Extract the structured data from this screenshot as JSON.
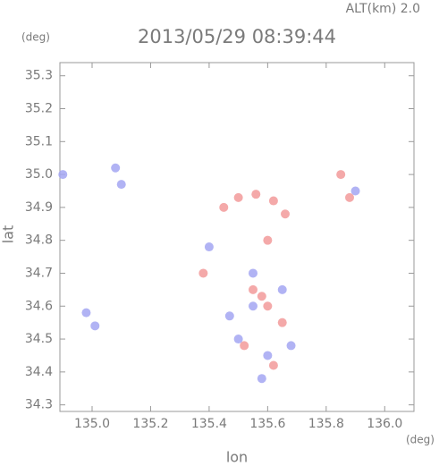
{
  "chart_data": {
    "type": "scatter",
    "title": "2013/05/29 08:39:44",
    "subtitle": "ALT(km) 2.0",
    "y_unit": "(deg)",
    "x_unit": "(deg)",
    "ylabel": "lat",
    "xlabel": "lon",
    "xlim": [
      134.89,
      136.1
    ],
    "ylim": [
      34.28,
      35.34
    ],
    "xticks": [
      {
        "value": 135,
        "label": "135.0"
      },
      135.2,
      135.4,
      135.6,
      135.8,
      {
        "value": 136,
        "label": "136.0"
      }
    ],
    "yticks": [
      34.3,
      34.4,
      34.5,
      34.6,
      34.7,
      34.8,
      34.9,
      {
        "value": 35,
        "label": "35.0"
      },
      35.1,
      35.2,
      35.3
    ],
    "grid": false,
    "series": [
      {
        "color": "#f29a9a",
        "x": [
          135.45,
          135.5,
          135.56,
          135.62,
          135.66,
          135.85,
          135.88,
          135.6,
          135.62,
          135.55,
          135.65,
          135.38,
          135.6,
          135.52,
          135.58
        ],
        "y": [
          34.9,
          34.93,
          34.94,
          34.92,
          34.88,
          35.0,
          34.93,
          34.6,
          34.42,
          34.65,
          34.55,
          34.7,
          34.8,
          34.48,
          34.63
        ]
      },
      {
        "color": "#a3a6f2",
        "x": [
          134.9,
          135.08,
          135.1,
          134.98,
          135.01,
          135.4,
          135.55,
          135.68,
          135.5,
          135.6,
          135.65,
          135.9,
          135.55,
          135.47,
          135.58
        ],
        "y": [
          35.0,
          35.02,
          34.97,
          34.58,
          34.54,
          34.78,
          34.6,
          34.48,
          34.5,
          34.45,
          34.65,
          34.95,
          34.7,
          34.57,
          34.38
        ]
      }
    ]
  }
}
